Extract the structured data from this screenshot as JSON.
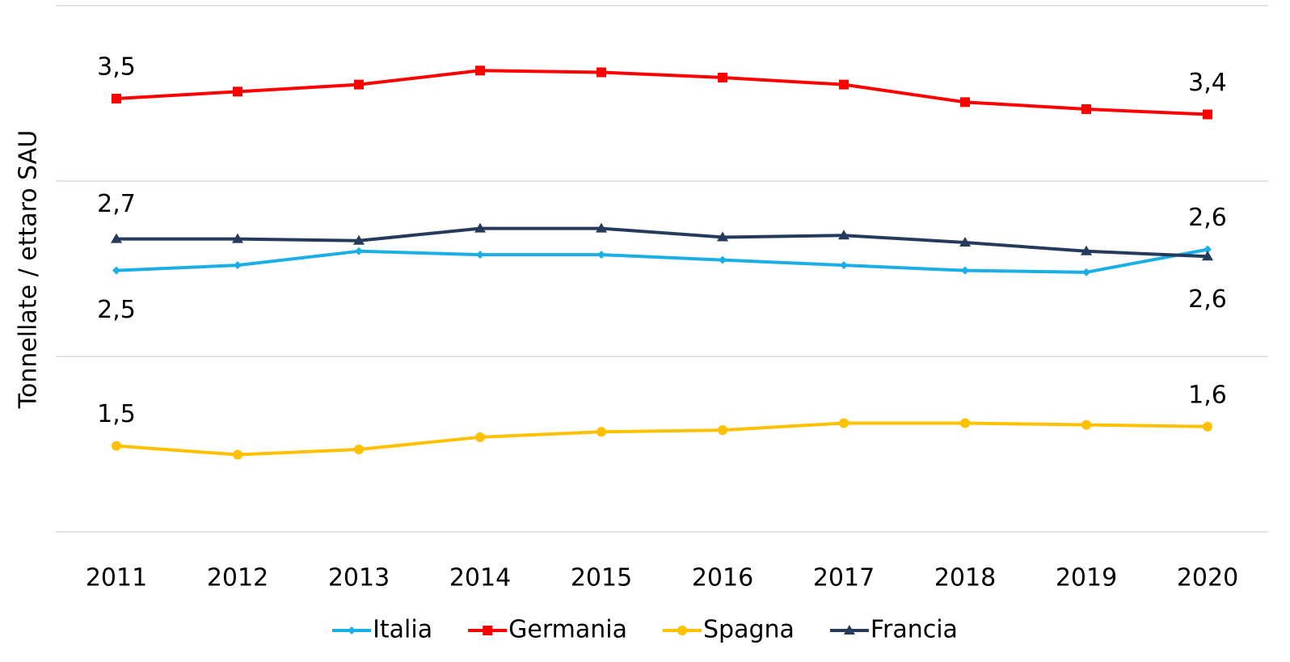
{
  "chart_data": {
    "type": "line",
    "y_label": "Tonnellate / ettaro SAU",
    "categories": [
      "2011",
      "2012",
      "2013",
      "2014",
      "2015",
      "2016",
      "2017",
      "2018",
      "2019",
      "2020"
    ],
    "series": [
      {
        "name": "Italia",
        "color": "#1aafe6",
        "marker": "diamond",
        "values": [
          2.49,
          2.52,
          2.6,
          2.58,
          2.58,
          2.55,
          2.52,
          2.49,
          2.48,
          2.61
        ],
        "value_labels": [
          "2,5",
          null,
          null,
          null,
          null,
          null,
          null,
          null,
          null,
          "2,6"
        ]
      },
      {
        "name": "Germania",
        "color": "#ff0000",
        "marker": "square",
        "values": [
          3.47,
          3.51,
          3.55,
          3.63,
          3.62,
          3.59,
          3.55,
          3.45,
          3.41,
          3.38
        ],
        "value_labels": [
          "3,5",
          null,
          null,
          null,
          null,
          null,
          null,
          null,
          null,
          "3,4"
        ]
      },
      {
        "name": "Spagna",
        "color": "#ffc000",
        "marker": "circle",
        "values": [
          1.49,
          1.44,
          1.47,
          1.54,
          1.57,
          1.58,
          1.62,
          1.62,
          1.61,
          1.6
        ],
        "value_labels": [
          "1,5",
          null,
          null,
          null,
          null,
          null,
          null,
          null,
          null,
          "1,6"
        ]
      },
      {
        "name": "Francia",
        "color": "#253b5c",
        "marker": "triangle",
        "values": [
          2.67,
          2.67,
          2.66,
          2.73,
          2.73,
          2.68,
          2.69,
          2.65,
          2.6,
          2.57
        ],
        "value_labels": [
          "2,7",
          null,
          null,
          null,
          null,
          null,
          null,
          null,
          null,
          "2,6"
        ]
      }
    ],
    "ylim": [
      1,
      4
    ],
    "yticks": [
      1,
      2,
      3,
      4
    ],
    "grid": true,
    "legend": "bottom"
  }
}
